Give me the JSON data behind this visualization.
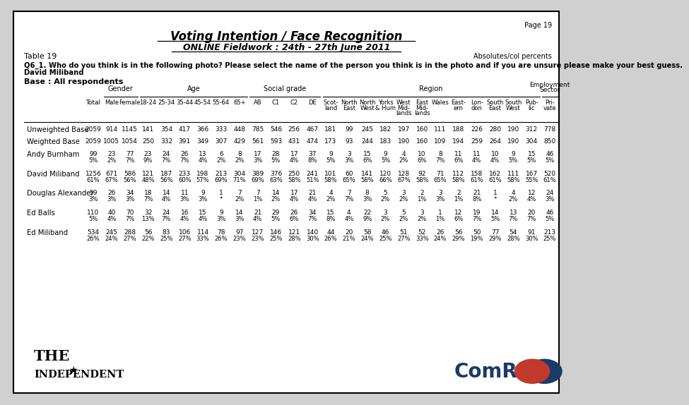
{
  "page_number": "Page 19",
  "title": "Voting Intention / Face Recognition",
  "subtitle": "ONLINE Fieldwork : 24th - 27th June 2011",
  "table_number": "Table 19",
  "top_right_note": "Absolutes/col percents",
  "question_line1": "Q6_1. Who do you think is in the following photo? Please select the name of the person you think is in the photo and if you are unsure please make your best guess.",
  "question_line2": "David Miliband",
  "base_label": "Base : All respondents",
  "columns": [
    "Total",
    "Male",
    "Female",
    "18-24",
    "25-34",
    "35-44",
    "45-54",
    "55-64",
    "65+",
    "AB",
    "C1",
    "C2",
    "DE",
    "Scot-\nland",
    "North\nEast",
    "North\nWest",
    "Yorks\n& Hum",
    "West\nMid-\nlands",
    "East\nMid-\nlands",
    "Wales",
    "East-\nern",
    "Lon-\ndon",
    "South\nEast",
    "South\nWest",
    "Pub-\nlic",
    "Pri-\nvate"
  ],
  "rows": [
    {
      "label": "Unweighted Base",
      "values": [
        "2059",
        "914",
        "1145",
        "141",
        "354",
        "417",
        "366",
        "333",
        "448",
        "785",
        "546",
        "256",
        "467",
        "181",
        "99",
        "245",
        "182",
        "197",
        "160",
        "111",
        "188",
        "226",
        "280",
        "190",
        "312",
        "778"
      ],
      "pcts": null
    },
    {
      "label": "Weighted Base",
      "values": [
        "2059",
        "1005",
        "1054",
        "250",
        "332",
        "391",
        "349",
        "307",
        "429",
        "561",
        "593",
        "431",
        "474",
        "173",
        "93",
        "244",
        "183",
        "190",
        "160",
        "109",
        "194",
        "259",
        "264",
        "190",
        "304",
        "850"
      ],
      "pcts": null
    },
    {
      "label": "Andy Burnham",
      "values": [
        "99",
        "23",
        "77",
        "23",
        "24",
        "26",
        "13",
        "6",
        "8",
        "17",
        "28",
        "17",
        "37",
        "9",
        "3",
        "15",
        "9",
        "4",
        "10",
        "8",
        "11",
        "11",
        "10",
        "9",
        "15",
        "46"
      ],
      "pcts": [
        "5%",
        "2%",
        "7%",
        "9%",
        "7%",
        "7%",
        "4%",
        "2%",
        "2%",
        "3%",
        "5%",
        "4%",
        "8%",
        "5%",
        "3%",
        "6%",
        "5%",
        "2%",
        "6%",
        "7%",
        "6%",
        "4%",
        "4%",
        "5%",
        "5%",
        "5%"
      ]
    },
    {
      "label": "David Miliband",
      "values": [
        "1256",
        "671",
        "586",
        "121",
        "187",
        "233",
        "198",
        "213",
        "304",
        "389",
        "376",
        "250",
        "241",
        "101",
        "60",
        "141",
        "120",
        "128",
        "92",
        "71",
        "112",
        "158",
        "162",
        "111",
        "167",
        "520"
      ],
      "pcts": [
        "61%",
        "67%",
        "56%",
        "48%",
        "56%",
        "60%",
        "57%",
        "69%",
        "71%",
        "69%",
        "63%",
        "58%",
        "51%",
        "58%",
        "65%",
        "58%",
        "66%",
        "67%",
        "58%",
        "65%",
        "58%",
        "61%",
        "61%",
        "58%",
        "55%",
        "61%"
      ]
    },
    {
      "label": "Douglas Alexander",
      "values": [
        "59",
        "26",
        "34",
        "18",
        "14",
        "11",
        "9",
        "1",
        "7",
        "7",
        "14",
        "17",
        "21",
        "4",
        "7",
        "8",
        "5",
        "3",
        "2",
        "3",
        "2",
        "21",
        "1",
        "4",
        "12",
        "24"
      ],
      "pcts": [
        "3%",
        "3%",
        "3%",
        "7%",
        "4%",
        "3%",
        "3%",
        "*",
        "2%",
        "1%",
        "2%",
        "4%",
        "4%",
        "2%",
        "7%",
        "3%",
        "2%",
        "2%",
        "1%",
        "3%",
        "1%",
        "8%",
        "*",
        "2%",
        "4%",
        "3%"
      ]
    },
    {
      "label": "Ed Balls",
      "values": [
        "110",
        "40",
        "70",
        "32",
        "24",
        "16",
        "15",
        "9",
        "14",
        "21",
        "29",
        "26",
        "34",
        "15",
        "4",
        "22",
        "3",
        "5",
        "3",
        "1",
        "12",
        "19",
        "14",
        "13",
        "20",
        "46"
      ],
      "pcts": [
        "5%",
        "4%",
        "7%",
        "13%",
        "7%",
        "4%",
        "4%",
        "3%",
        "3%",
        "4%",
        "5%",
        "6%",
        "7%",
        "8%",
        "4%",
        "9%",
        "2%",
        "2%",
        "2%",
        "1%",
        "6%",
        "7%",
        "5%",
        "7%",
        "7%",
        "5%"
      ]
    },
    {
      "label": "Ed Miliband",
      "values": [
        "534",
        "245",
        "288",
        "56",
        "83",
        "106",
        "114",
        "78",
        "97",
        "127",
        "146",
        "121",
        "140",
        "44",
        "20",
        "58",
        "46",
        "51",
        "52",
        "26",
        "56",
        "50",
        "77",
        "54",
        "91",
        "213"
      ],
      "pcts": [
        "26%",
        "24%",
        "27%",
        "22%",
        "25%",
        "27%",
        "33%",
        "26%",
        "23%",
        "23%",
        "25%",
        "28%",
        "30%",
        "26%",
        "21%",
        "24%",
        "25%",
        "27%",
        "33%",
        "24%",
        "29%",
        "19%",
        "29%",
        "28%",
        "30%",
        "25%"
      ]
    }
  ],
  "bg_color": "#ffffff",
  "border_color": "#000000",
  "text_color": "#000000",
  "comres_blue": "#1a3a6b",
  "comres_red": "#c0392b"
}
